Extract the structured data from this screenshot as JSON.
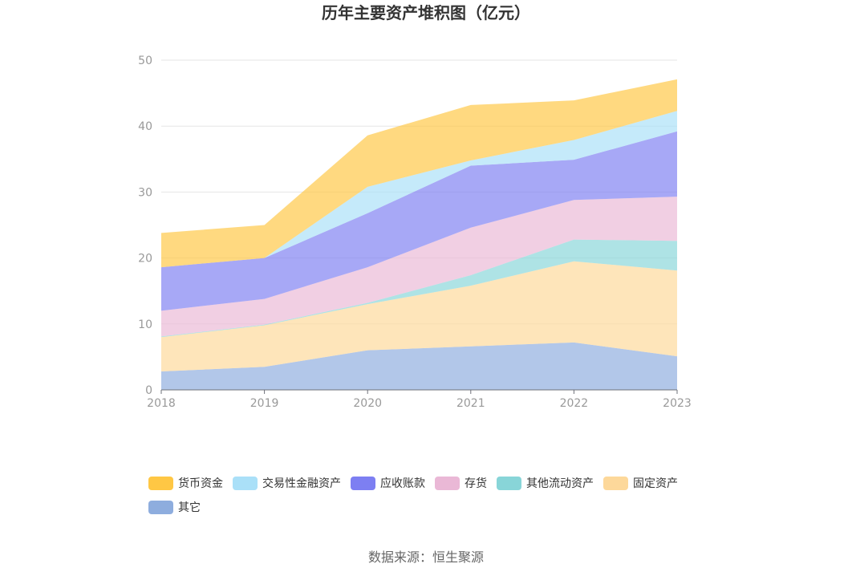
{
  "chart_data": {
    "type": "area",
    "stacked": true,
    "title": "历年主要资产堆积图（亿元）",
    "categories": [
      "2018",
      "2019",
      "2020",
      "2021",
      "2022",
      "2023"
    ],
    "ylim": [
      0,
      50
    ],
    "yticks": [
      0,
      10,
      20,
      30,
      40,
      50
    ],
    "grid": true,
    "legend_position": "bottom",
    "series": [
      {
        "name": "其它",
        "color": "#8eadde",
        "values": [
          2.8,
          3.5,
          6.0,
          6.6,
          7.2,
          5.1
        ]
      },
      {
        "name": "固定资产",
        "color": "#fdd89a",
        "values": [
          5.2,
          6.3,
          7.0,
          9.2,
          12.3,
          13.0
        ]
      },
      {
        "name": "其他流动资产",
        "color": "#88d5d8",
        "values": [
          0.1,
          0.1,
          0.2,
          1.6,
          3.3,
          4.5
        ]
      },
      {
        "name": "存货",
        "color": "#eab8d6",
        "values": [
          3.9,
          3.9,
          5.4,
          7.2,
          6.0,
          6.7
        ]
      },
      {
        "name": "应收账款",
        "color": "#7d7ff2",
        "values": [
          6.6,
          6.2,
          8.2,
          9.4,
          6.1,
          9.9
        ]
      },
      {
        "name": "交易性金融资产",
        "color": "#aae0f8",
        "values": [
          0.0,
          0.0,
          4.0,
          0.8,
          3.0,
          3.1
        ]
      },
      {
        "name": "货币资金",
        "color": "#ffc744",
        "values": [
          5.2,
          5.0,
          7.8,
          8.4,
          6.0,
          4.8
        ]
      }
    ],
    "legend_order": [
      "货币资金",
      "交易性金融资产",
      "应收账款",
      "存货",
      "其他流动资产",
      "固定资产",
      "其它"
    ]
  },
  "source": "数据来源：恒生聚源"
}
